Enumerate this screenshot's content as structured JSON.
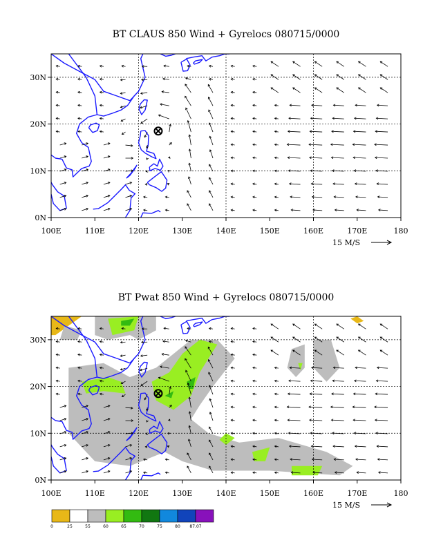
{
  "panels": [
    {
      "id": "top",
      "title": "BT CLAUS 850 Wind + Gyrelocs 080715/0000",
      "x_ticks": [
        "100E",
        "110E",
        "120E",
        "130E",
        "140E",
        "150E",
        "160E",
        "170E",
        "180"
      ],
      "y_ticks": [
        "0N",
        "10N",
        "20N",
        "30N"
      ],
      "scale_label": "15 M/S",
      "marker": {
        "lon": 124.5,
        "lat": 18.5,
        "symbol": "circle-x"
      }
    },
    {
      "id": "bottom",
      "title": "BT Pwat 850 Wind + Gyrelocs 080715/0000",
      "x_ticks": [
        "100E",
        "110E",
        "120E",
        "130E",
        "140E",
        "150E",
        "160E",
        "170E",
        "180"
      ],
      "y_ticks": [
        "0N",
        "10N",
        "20N",
        "30N"
      ],
      "scale_label": "15 M/S",
      "marker": {
        "lon": 124.5,
        "lat": 18.5,
        "symbol": "circle-x"
      }
    }
  ],
  "colorbar": {
    "labels": [
      "0",
      "25",
      "55",
      "60",
      "65",
      "70",
      "75",
      "80",
      "87.07"
    ],
    "colors": [
      "#e8b818",
      "#ffffff",
      "#bdbdbd",
      "#99ee22",
      "#33bb11",
      "#117711",
      "#1188dd",
      "#1144bb",
      "#8811bb"
    ]
  },
  "map_colors": {
    "coast": "#1a1aff",
    "grid": "#000000",
    "arrow": "#000000"
  }
}
